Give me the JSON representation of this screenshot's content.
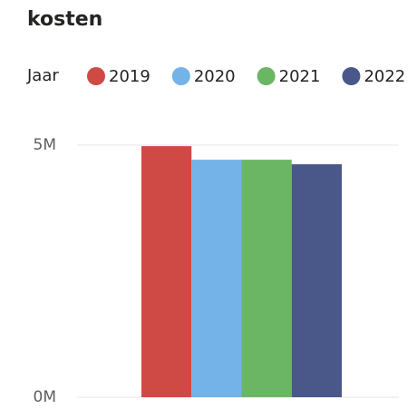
{
  "chart_data": {
    "type": "bar",
    "title": "kosten",
    "legend_title": "Jaar",
    "categories": [
      null
    ],
    "series": [
      {
        "name": "2019",
        "color": "#d04a45",
        "values": [
          4980000
        ]
      },
      {
        "name": "2020",
        "color": "#73b3e7",
        "values": [
          4710000
        ]
      },
      {
        "name": "2021",
        "color": "#6bb665",
        "values": [
          4710000
        ]
      },
      {
        "name": "2022",
        "color": "#4a5889",
        "values": [
          4620000
        ]
      }
    ],
    "ylim": [
      0,
      5000000
    ],
    "yticks": [
      {
        "value": 0,
        "label": "0M"
      },
      {
        "value": 5000000,
        "label": "5M"
      }
    ],
    "grid": true,
    "legend": "top-left"
  }
}
